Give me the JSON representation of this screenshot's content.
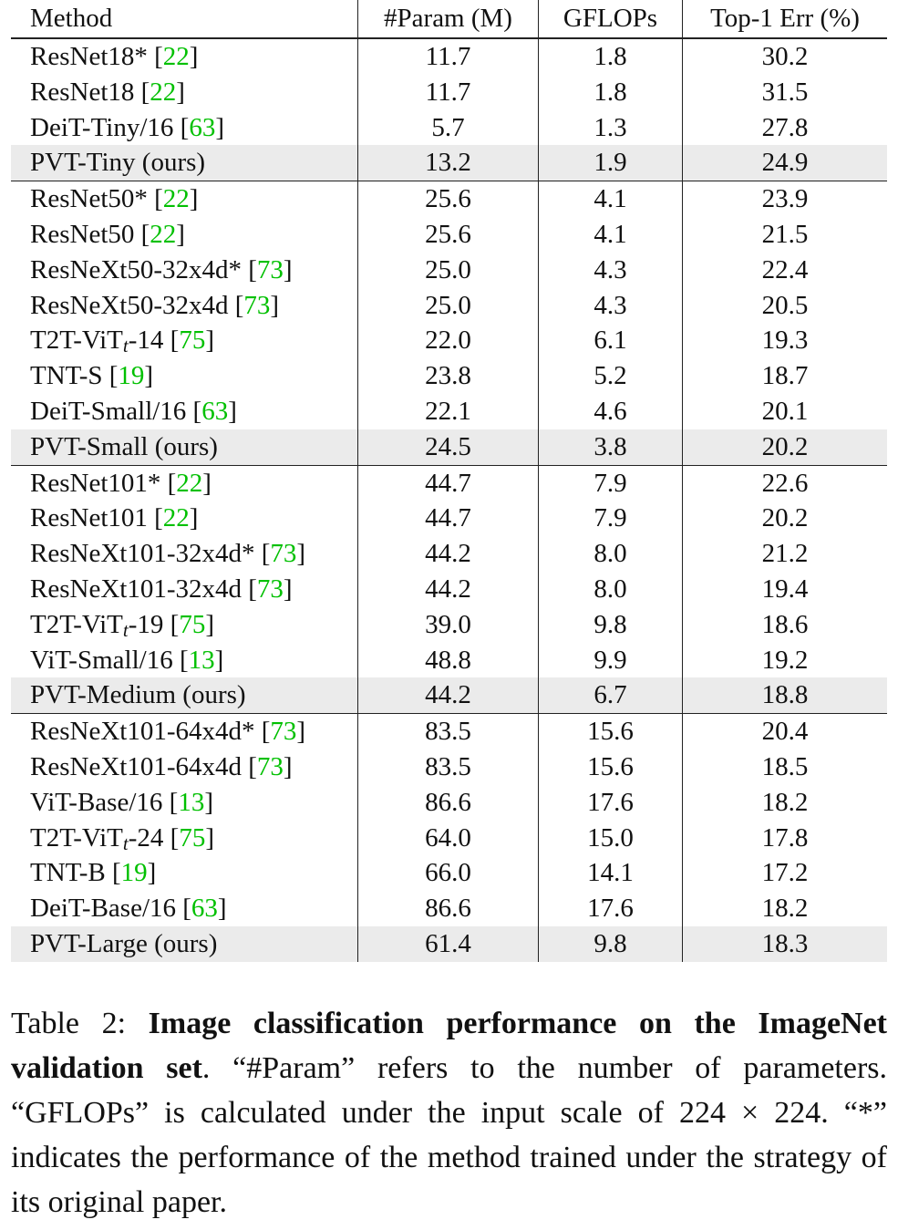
{
  "table": {
    "header": [
      "Method",
      "#Param (M)",
      "GFLOPs",
      "Top-1 Err (%)"
    ],
    "groups": [
      {
        "rows": [
          {
            "method": [
              {
                "text": "ResNet18* ["
              },
              {
                "text": "22",
                "style": "cite"
              },
              {
                "text": "]"
              }
            ],
            "params": "11.7",
            "gflops": "1.8",
            "top1": "30.2"
          },
          {
            "method": [
              {
                "text": "ResNet18 ["
              },
              {
                "text": "22",
                "style": "cite"
              },
              {
                "text": "]"
              }
            ],
            "params": "11.7",
            "gflops": "1.8",
            "top1": "31.5"
          },
          {
            "method": [
              {
                "text": "DeiT-Tiny/16 ["
              },
              {
                "text": "63",
                "style": "cite"
              },
              {
                "text": "]"
              }
            ],
            "params": "5.7",
            "gflops": "1.3",
            "top1": "27.8"
          },
          {
            "method": [
              {
                "text": "PVT-Tiny (ours)"
              }
            ],
            "params": "13.2",
            "gflops": "1.9",
            "top1": "24.9",
            "highlight": true
          }
        ]
      },
      {
        "rows": [
          {
            "method": [
              {
                "text": "ResNet50* ["
              },
              {
                "text": "22",
                "style": "cite"
              },
              {
                "text": "]"
              }
            ],
            "params": "25.6",
            "gflops": "4.1",
            "top1": "23.9"
          },
          {
            "method": [
              {
                "text": "ResNet50 ["
              },
              {
                "text": "22",
                "style": "cite"
              },
              {
                "text": "]"
              }
            ],
            "params": "25.6",
            "gflops": "4.1",
            "top1": "21.5"
          },
          {
            "method": [
              {
                "text": "ResNeXt50-32x4d* ["
              },
              {
                "text": "73",
                "style": "cite"
              },
              {
                "text": "]"
              }
            ],
            "params": "25.0",
            "gflops": "4.3",
            "top1": "22.4"
          },
          {
            "method": [
              {
                "text": "ResNeXt50-32x4d ["
              },
              {
                "text": "73",
                "style": "cite"
              },
              {
                "text": "]"
              }
            ],
            "params": "25.0",
            "gflops": "4.3",
            "top1": "20.5"
          },
          {
            "method": [
              {
                "text": "T2T-ViT"
              },
              {
                "text": "t",
                "style": "sub"
              },
              {
                "text": "-14 ["
              },
              {
                "text": "75",
                "style": "cite"
              },
              {
                "text": "]"
              }
            ],
            "params": "22.0",
            "gflops": "6.1",
            "top1": "19.3"
          },
          {
            "method": [
              {
                "text": "TNT-S ["
              },
              {
                "text": "19",
                "style": "cite"
              },
              {
                "text": "]"
              }
            ],
            "params": "23.8",
            "gflops": "5.2",
            "top1": "18.7"
          },
          {
            "method": [
              {
                "text": "DeiT-Small/16 ["
              },
              {
                "text": "63",
                "style": "cite"
              },
              {
                "text": "]"
              }
            ],
            "params": "22.1",
            "gflops": "4.6",
            "top1": "20.1"
          },
          {
            "method": [
              {
                "text": "PVT-Small (ours)"
              }
            ],
            "params": "24.5",
            "gflops": "3.8",
            "top1": "20.2",
            "highlight": true
          }
        ]
      },
      {
        "rows": [
          {
            "method": [
              {
                "text": "ResNet101* ["
              },
              {
                "text": "22",
                "style": "cite"
              },
              {
                "text": "]"
              }
            ],
            "params": "44.7",
            "gflops": "7.9",
            "top1": "22.6"
          },
          {
            "method": [
              {
                "text": "ResNet101 ["
              },
              {
                "text": "22",
                "style": "cite"
              },
              {
                "text": "]"
              }
            ],
            "params": "44.7",
            "gflops": "7.9",
            "top1": "20.2"
          },
          {
            "method": [
              {
                "text": "ResNeXt101-32x4d* ["
              },
              {
                "text": "73",
                "style": "cite"
              },
              {
                "text": "]"
              }
            ],
            "params": "44.2",
            "gflops": "8.0",
            "top1": "21.2"
          },
          {
            "method": [
              {
                "text": "ResNeXt101-32x4d ["
              },
              {
                "text": "73",
                "style": "cite"
              },
              {
                "text": "]"
              }
            ],
            "params": "44.2",
            "gflops": "8.0",
            "top1": "19.4"
          },
          {
            "method": [
              {
                "text": "T2T-ViT"
              },
              {
                "text": "t",
                "style": "sub"
              },
              {
                "text": "-19 ["
              },
              {
                "text": "75",
                "style": "cite"
              },
              {
                "text": "]"
              }
            ],
            "params": "39.0",
            "gflops": "9.8",
            "top1": "18.6"
          },
          {
            "method": [
              {
                "text": "ViT-Small/16 ["
              },
              {
                "text": "13",
                "style": "cite"
              },
              {
                "text": "]"
              }
            ],
            "params": "48.8",
            "gflops": "9.9",
            "top1": "19.2"
          },
          {
            "method": [
              {
                "text": "PVT-Medium (ours)"
              }
            ],
            "params": "44.2",
            "gflops": "6.7",
            "top1": "18.8",
            "highlight": true
          }
        ]
      },
      {
        "rows": [
          {
            "method": [
              {
                "text": "ResNeXt101-64x4d* ["
              },
              {
                "text": "73",
                "style": "cite"
              },
              {
                "text": "]"
              }
            ],
            "params": "83.5",
            "gflops": "15.6",
            "top1": "20.4"
          },
          {
            "method": [
              {
                "text": "ResNeXt101-64x4d ["
              },
              {
                "text": "73",
                "style": "cite"
              },
              {
                "text": "]"
              }
            ],
            "params": "83.5",
            "gflops": "15.6",
            "top1": "18.5"
          },
          {
            "method": [
              {
                "text": "ViT-Base/16 ["
              },
              {
                "text": "13",
                "style": "cite"
              },
              {
                "text": "]"
              }
            ],
            "params": "86.6",
            "gflops": "17.6",
            "top1": "18.2"
          },
          {
            "method": [
              {
                "text": "T2T-ViT"
              },
              {
                "text": "t",
                "style": "sub"
              },
              {
                "text": "-24 ["
              },
              {
                "text": "75",
                "style": "cite"
              },
              {
                "text": "]"
              }
            ],
            "params": "64.0",
            "gflops": "15.0",
            "top1": "17.8"
          },
          {
            "method": [
              {
                "text": "TNT-B ["
              },
              {
                "text": "19",
                "style": "cite"
              },
              {
                "text": "]"
              }
            ],
            "params": "66.0",
            "gflops": "14.1",
            "top1": "17.2"
          },
          {
            "method": [
              {
                "text": "DeiT-Base/16 ["
              },
              {
                "text": "63",
                "style": "cite"
              },
              {
                "text": "]"
              }
            ],
            "params": "86.6",
            "gflops": "17.6",
            "top1": "18.2"
          },
          {
            "method": [
              {
                "text": "PVT-Large (ours)"
              }
            ],
            "params": "61.4",
            "gflops": "9.8",
            "top1": "18.3",
            "highlight": true
          }
        ]
      }
    ]
  },
  "caption": [
    {
      "text": "Table 2: "
    },
    {
      "text": "Image classification performance on the ImageNet validation set",
      "style": "bold"
    },
    {
      "text": ". “#Param” refers to the number of parameters. “GFLOPs” is calculated under the input scale of 224 × 224. “*” indicates the performance of the method trained under the strategy of its original paper."
    }
  ]
}
